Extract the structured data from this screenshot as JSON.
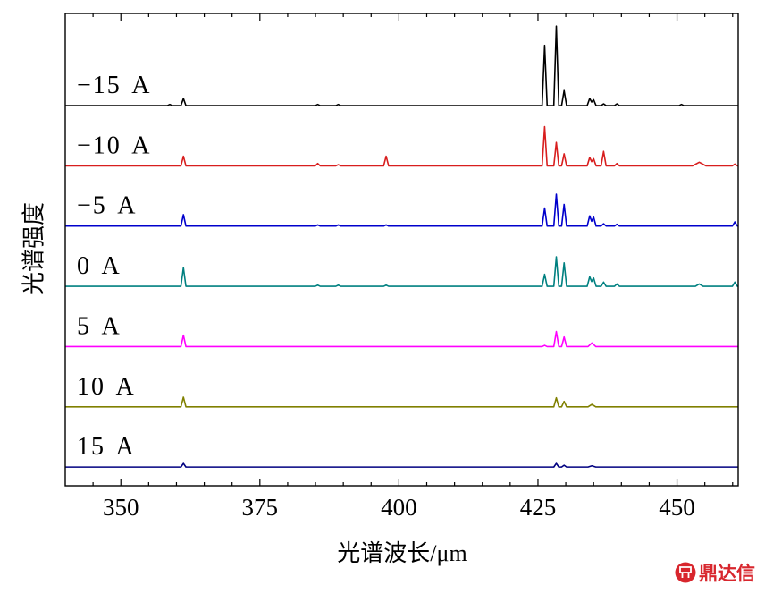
{
  "chart_data": {
    "type": "line",
    "xlabel": "光谱波长/μm",
    "ylabel": "光谱强度",
    "xlim": [
      340,
      461
    ],
    "ylim": [
      -0.31,
      7.53
    ],
    "xticks": [
      350,
      375,
      400,
      425,
      450
    ],
    "yticks": [],
    "grid": false,
    "series": [
      {
        "name": "−15 A",
        "color": "#000000",
        "points": [
          [
            340,
            6
          ],
          [
            358.35,
            6
          ],
          [
            358.8,
            6.02
          ],
          [
            359.25,
            6
          ],
          [
            360.8,
            6
          ],
          [
            361.25,
            6.12
          ],
          [
            361.7,
            6
          ],
          [
            384.95,
            6
          ],
          [
            385.4,
            6.02
          ],
          [
            385.85,
            6
          ],
          [
            388.65,
            6
          ],
          [
            389.1,
            6.02
          ],
          [
            389.55,
            6
          ],
          [
            425.75,
            6
          ],
          [
            426.2,
            7.0
          ],
          [
            426.65,
            6
          ],
          [
            427.85,
            6
          ],
          [
            428.3,
            7.32
          ],
          [
            428.75,
            6
          ],
          [
            429.25,
            6
          ],
          [
            429.7,
            6.25
          ],
          [
            430.15,
            6
          ],
          [
            433.85,
            6
          ],
          [
            434.3,
            6.12
          ],
          [
            434.65,
            6.06
          ],
          [
            435.0,
            6.1
          ],
          [
            435.45,
            6
          ],
          [
            436.35,
            6
          ],
          [
            436.8,
            6.03
          ],
          [
            437.25,
            6
          ],
          [
            438.75,
            6
          ],
          [
            439.2,
            6.03
          ],
          [
            439.65,
            6
          ],
          [
            450.35,
            6
          ],
          [
            450.8,
            6.02
          ],
          [
            451.25,
            6
          ],
          [
            461,
            6
          ]
        ]
      },
      {
        "name": "−10 A",
        "color": "#d81e1e",
        "points": [
          [
            340,
            5
          ],
          [
            360.8,
            5
          ],
          [
            361.25,
            5.16
          ],
          [
            361.7,
            5
          ],
          [
            384.95,
            5
          ],
          [
            385.4,
            5.04
          ],
          [
            385.85,
            5
          ],
          [
            388.65,
            5
          ],
          [
            389.1,
            5.02
          ],
          [
            389.55,
            5
          ],
          [
            397.25,
            5
          ],
          [
            397.7,
            5.16
          ],
          [
            398.15,
            5
          ],
          [
            425.75,
            5
          ],
          [
            426.2,
            5.65
          ],
          [
            426.65,
            5
          ],
          [
            427.85,
            5
          ],
          [
            428.3,
            5.39
          ],
          [
            428.75,
            5
          ],
          [
            429.25,
            5
          ],
          [
            429.7,
            5.2
          ],
          [
            430.15,
            5
          ],
          [
            433.85,
            5
          ],
          [
            434.3,
            5.14
          ],
          [
            434.65,
            5.07
          ],
          [
            435.0,
            5.12
          ],
          [
            435.45,
            5
          ],
          [
            436.35,
            5
          ],
          [
            436.8,
            5.24
          ],
          [
            437.25,
            5
          ],
          [
            438.75,
            5
          ],
          [
            439.2,
            5.04
          ],
          [
            439.65,
            5
          ],
          [
            452.8,
            5
          ],
          [
            454.0,
            5.06
          ],
          [
            455.2,
            5
          ],
          [
            459.95,
            5
          ],
          [
            460.4,
            5.03
          ],
          [
            460.85,
            5
          ],
          [
            461,
            5
          ]
        ]
      },
      {
        "name": "−5 A",
        "color": "#0000cc",
        "points": [
          [
            340,
            4
          ],
          [
            360.8,
            4
          ],
          [
            361.25,
            4.19
          ],
          [
            361.7,
            4
          ],
          [
            384.95,
            4
          ],
          [
            385.4,
            4.02
          ],
          [
            385.85,
            4
          ],
          [
            388.65,
            4
          ],
          [
            389.1,
            4.02
          ],
          [
            389.55,
            4
          ],
          [
            397.25,
            4
          ],
          [
            397.7,
            4.02
          ],
          [
            398.15,
            4
          ],
          [
            425.75,
            4
          ],
          [
            426.2,
            4.3
          ],
          [
            426.65,
            4
          ],
          [
            427.85,
            4
          ],
          [
            428.3,
            4.53
          ],
          [
            428.75,
            4
          ],
          [
            429.25,
            4
          ],
          [
            429.7,
            4.36
          ],
          [
            430.15,
            4
          ],
          [
            433.85,
            4
          ],
          [
            434.3,
            4.17
          ],
          [
            434.65,
            4.08
          ],
          [
            435.0,
            4.15
          ],
          [
            435.45,
            4
          ],
          [
            436.35,
            4
          ],
          [
            436.8,
            4.04
          ],
          [
            437.25,
            4
          ],
          [
            438.75,
            4
          ],
          [
            439.2,
            4.03
          ],
          [
            439.65,
            4
          ],
          [
            459.95,
            4
          ],
          [
            460.4,
            4.07
          ],
          [
            460.85,
            4
          ],
          [
            461,
            4
          ]
        ]
      },
      {
        "name": "0 A",
        "color": "#008080",
        "points": [
          [
            340,
            3
          ],
          [
            360.8,
            3
          ],
          [
            361.25,
            3.31
          ],
          [
            361.7,
            3
          ],
          [
            384.95,
            3
          ],
          [
            385.4,
            3.02
          ],
          [
            385.85,
            3
          ],
          [
            388.65,
            3
          ],
          [
            389.1,
            3.02
          ],
          [
            389.55,
            3
          ],
          [
            397.25,
            3
          ],
          [
            397.7,
            3.02
          ],
          [
            398.15,
            3
          ],
          [
            425.75,
            3
          ],
          [
            426.2,
            3.2
          ],
          [
            426.65,
            3
          ],
          [
            427.85,
            3
          ],
          [
            428.3,
            3.49
          ],
          [
            428.75,
            3
          ],
          [
            429.25,
            3
          ],
          [
            429.7,
            3.39
          ],
          [
            430.15,
            3
          ],
          [
            433.85,
            3
          ],
          [
            434.3,
            3.16
          ],
          [
            434.65,
            3.08
          ],
          [
            435.0,
            3.14
          ],
          [
            435.45,
            3
          ],
          [
            436.35,
            3
          ],
          [
            436.8,
            3.07
          ],
          [
            437.25,
            3
          ],
          [
            438.75,
            3
          ],
          [
            439.2,
            3.04
          ],
          [
            439.65,
            3
          ],
          [
            453.3,
            3
          ],
          [
            454.0,
            3.04
          ],
          [
            454.7,
            3
          ],
          [
            459.95,
            3
          ],
          [
            460.4,
            3.07
          ],
          [
            460.85,
            3
          ],
          [
            461,
            3
          ]
        ]
      },
      {
        "name": "5 A",
        "color": "#ff00ff",
        "points": [
          [
            340,
            2
          ],
          [
            360.8,
            2
          ],
          [
            361.25,
            2.19
          ],
          [
            361.7,
            2
          ],
          [
            425.75,
            2
          ],
          [
            426.2,
            2.02
          ],
          [
            426.65,
            2
          ],
          [
            427.85,
            2
          ],
          [
            428.3,
            2.25
          ],
          [
            428.75,
            2
          ],
          [
            429.25,
            2
          ],
          [
            429.7,
            2.16
          ],
          [
            430.15,
            2
          ],
          [
            434.0,
            2
          ],
          [
            434.7,
            2.06
          ],
          [
            435.4,
            2
          ],
          [
            461,
            2
          ]
        ]
      },
      {
        "name": "10 A",
        "color": "#808000",
        "points": [
          [
            340,
            1
          ],
          [
            360.8,
            1
          ],
          [
            361.25,
            1.16
          ],
          [
            361.7,
            1
          ],
          [
            427.85,
            1
          ],
          [
            428.3,
            1.15
          ],
          [
            428.75,
            1
          ],
          [
            429.25,
            1
          ],
          [
            429.7,
            1.09
          ],
          [
            430.15,
            1
          ],
          [
            434.0,
            1
          ],
          [
            434.7,
            1.04
          ],
          [
            435.4,
            1
          ],
          [
            461,
            1
          ]
        ]
      },
      {
        "name": "15 A",
        "color": "#000080",
        "points": [
          [
            340,
            0
          ],
          [
            360.8,
            0
          ],
          [
            361.25,
            0.06
          ],
          [
            361.7,
            0
          ],
          [
            427.85,
            0
          ],
          [
            428.3,
            0.06
          ],
          [
            428.75,
            0
          ],
          [
            429.25,
            0
          ],
          [
            429.7,
            0.03
          ],
          [
            430.15,
            0
          ],
          [
            434.0,
            0
          ],
          [
            434.7,
            0.02
          ],
          [
            435.4,
            0
          ],
          [
            461,
            0
          ]
        ]
      }
    ]
  },
  "watermark": {
    "text": "鼎达信",
    "color": "#d8262d"
  }
}
